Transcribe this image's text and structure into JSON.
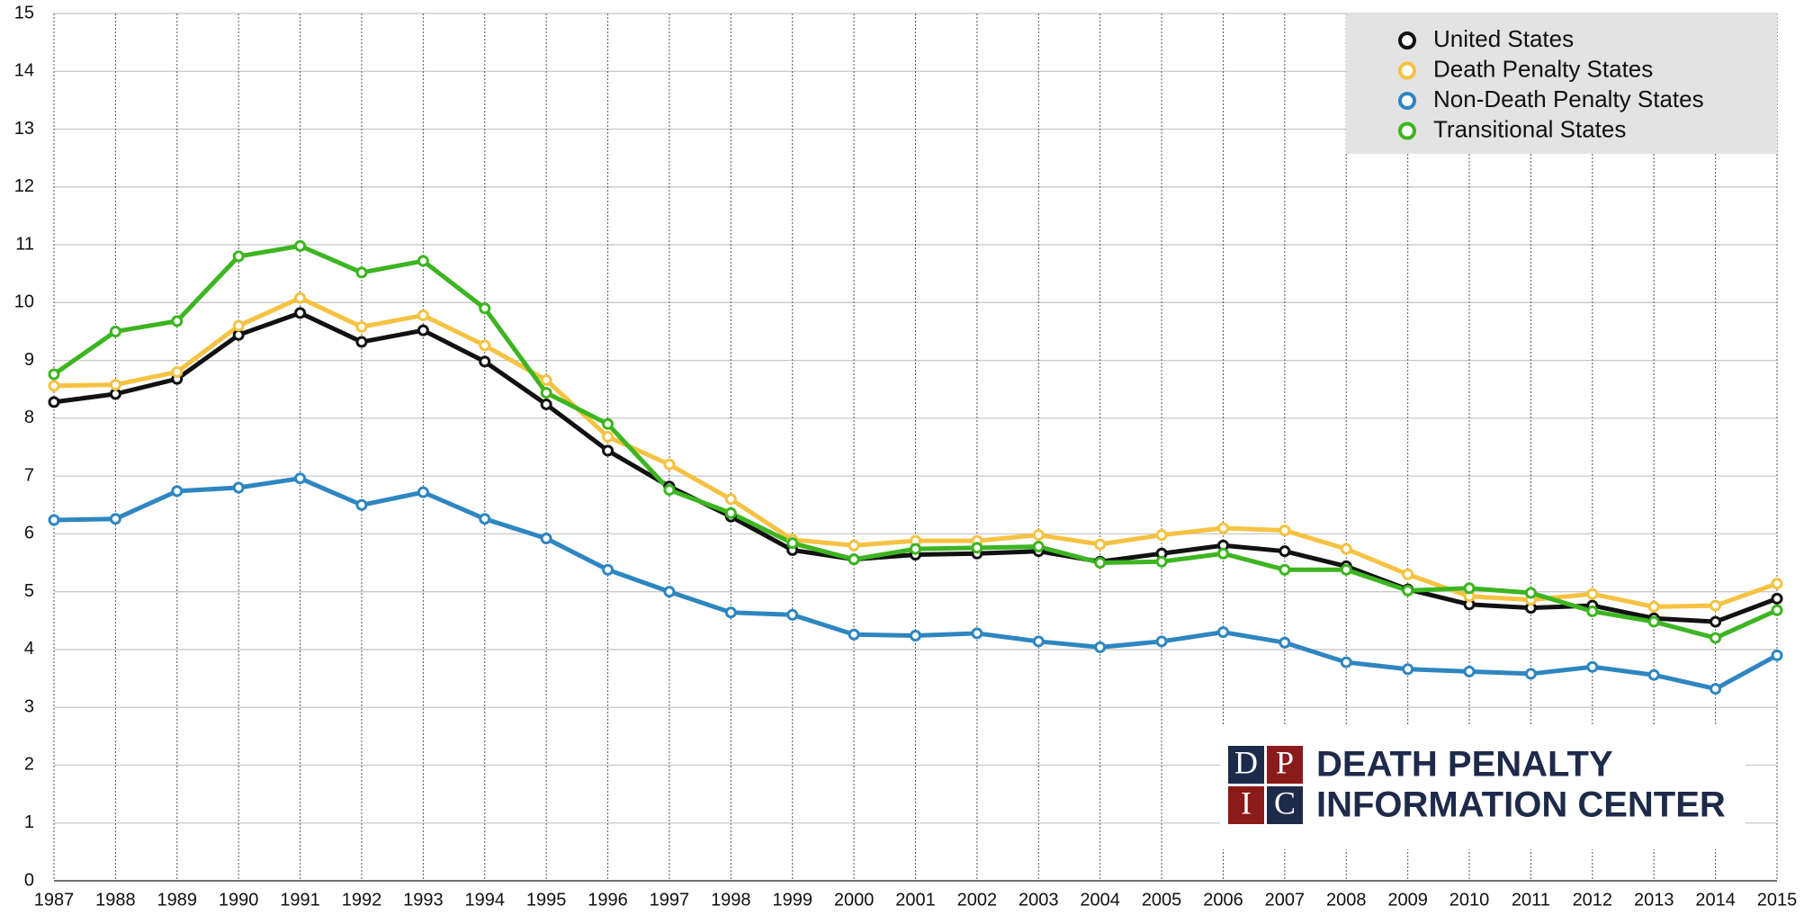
{
  "chart_data": {
    "type": "line",
    "categories": [
      "1987",
      "1988",
      "1989",
      "1990",
      "1991",
      "1992",
      "1993",
      "1994",
      "1995",
      "1996",
      "1997",
      "1998",
      "1999",
      "2000",
      "2001",
      "2002",
      "2003",
      "2004",
      "2005",
      "2006",
      "2007",
      "2008",
      "2009",
      "2010",
      "2011",
      "2012",
      "2013",
      "2014",
      "2015"
    ],
    "series": [
      {
        "name": "United States",
        "color": "#111111",
        "values": [
          8.28,
          8.42,
          8.68,
          9.44,
          9.82,
          9.32,
          9.52,
          8.98,
          8.24,
          7.44,
          6.82,
          6.3,
          5.72,
          5.56,
          5.64,
          5.66,
          5.7,
          5.52,
          5.66,
          5.8,
          5.7,
          5.44,
          5.04,
          4.78,
          4.72,
          4.76,
          4.54,
          4.48,
          4.88
        ]
      },
      {
        "name": "Death Penalty States",
        "color": "#f5c242",
        "values": [
          8.56,
          8.58,
          8.8,
          9.6,
          10.08,
          9.58,
          9.78,
          9.26,
          8.66,
          7.68,
          7.2,
          6.6,
          5.9,
          5.8,
          5.88,
          5.88,
          5.98,
          5.82,
          5.98,
          6.1,
          6.06,
          5.74,
          5.3,
          4.92,
          4.86,
          4.96,
          4.74,
          4.76,
          5.14
        ]
      },
      {
        "name": "Non-Death Penalty States",
        "color": "#2e86c1",
        "values": [
          6.24,
          6.26,
          6.74,
          6.8,
          6.96,
          6.5,
          6.72,
          6.26,
          5.92,
          5.38,
          5.0,
          4.64,
          4.6,
          4.26,
          4.24,
          4.28,
          4.14,
          4.04,
          4.14,
          4.3,
          4.12,
          3.78,
          3.66,
          3.62,
          3.58,
          3.7,
          3.56,
          3.32,
          3.9
        ]
      },
      {
        "name": "Transitional States",
        "color": "#3cb521",
        "values": [
          8.76,
          9.5,
          9.68,
          10.8,
          10.98,
          10.52,
          10.72,
          9.9,
          8.44,
          7.9,
          6.76,
          6.36,
          5.84,
          5.56,
          5.74,
          5.76,
          5.78,
          5.5,
          5.52,
          5.66,
          5.38,
          5.38,
          5.02,
          5.06,
          4.98,
          4.66,
          4.48,
          4.2,
          4.68
        ]
      }
    ],
    "ylim": [
      0,
      15
    ],
    "yticks": [
      0,
      1,
      2,
      3,
      4,
      5,
      6,
      7,
      8,
      9,
      10,
      11,
      12,
      13,
      14,
      15
    ],
    "grid": true,
    "legend": "upper right"
  },
  "logo": {
    "letters": [
      "D",
      "P",
      "I",
      "C"
    ],
    "line1": "DEATH PENALTY",
    "line2": "INFORMATION CENTER"
  }
}
